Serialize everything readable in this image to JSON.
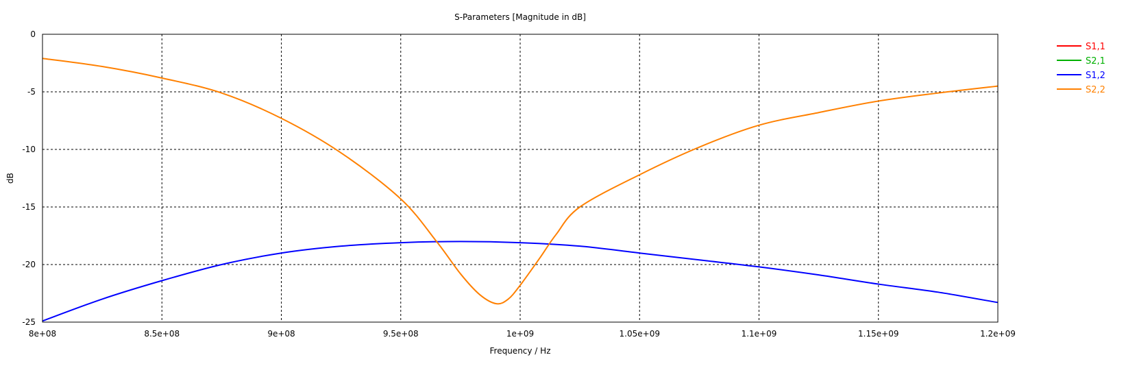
{
  "chart_data": {
    "type": "line",
    "title": "S-Parameters [Magnitude in dB]",
    "xlabel": "Frequency / Hz",
    "ylabel": "dB",
    "xlim": [
      800000000,
      1200000000
    ],
    "ylim": [
      -25,
      0
    ],
    "xticks": [
      800000000,
      850000000,
      900000000,
      950000000,
      1000000000,
      1050000000,
      1100000000,
      1150000000,
      1200000000
    ],
    "xtick_labels": [
      "8e+08",
      "8.5e+08",
      "9e+08",
      "9.5e+08",
      "1e+09",
      "1.05e+09",
      "1.1e+09",
      "1.15e+09",
      "1.2e+09"
    ],
    "yticks": [
      0,
      -5,
      -10,
      -15,
      -20,
      -25
    ],
    "ytick_labels": [
      "0",
      "-5",
      "-10",
      "-15",
      "-20",
      "-25"
    ],
    "grid": true,
    "legend_placement": "right",
    "series": [
      {
        "name": "S1,1",
        "color": "#ff0000",
        "x": [],
        "y": []
      },
      {
        "name": "S2,1",
        "color": "#00b000",
        "x": [],
        "y": []
      },
      {
        "name": "S1,2",
        "color": "#0000ff",
        "x": [
          800000000,
          825000000,
          850000000,
          875000000,
          900000000,
          925000000,
          950000000,
          975000000,
          1000000000,
          1025000000,
          1050000000,
          1075000000,
          1100000000,
          1125000000,
          1150000000,
          1175000000,
          1200000000
        ],
        "y": [
          -24.9,
          -23.0,
          -21.4,
          -20.0,
          -19.0,
          -18.4,
          -18.1,
          -18.0,
          -18.1,
          -18.4,
          -19.0,
          -19.6,
          -20.2,
          -20.9,
          -21.7,
          -22.4,
          -23.3
        ]
      },
      {
        "name": "S2,2",
        "color": "#ff8000",
        "x": [
          800000000,
          825000000,
          850000000,
          875000000,
          900000000,
          925000000,
          950000000,
          965000000,
          975000000,
          983000000,
          990000000,
          995000000,
          1000000000,
          1008000000,
          1015000000,
          1025000000,
          1050000000,
          1075000000,
          1100000000,
          1125000000,
          1150000000,
          1175000000,
          1200000000
        ],
        "y": [
          -2.1,
          -2.8,
          -3.8,
          -5.1,
          -7.3,
          -10.3,
          -14.3,
          -18.0,
          -20.8,
          -22.6,
          -23.4,
          -23.0,
          -21.8,
          -19.5,
          -17.4,
          -15.0,
          -12.2,
          -9.8,
          -7.9,
          -6.8,
          -5.8,
          -5.1,
          -4.5
        ]
      }
    ]
  }
}
